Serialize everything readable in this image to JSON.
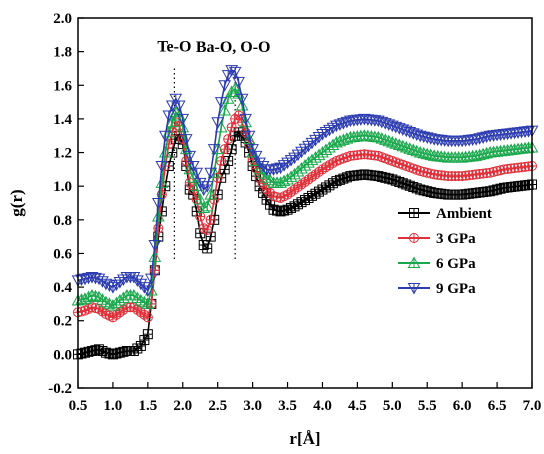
{
  "chart_data": {
    "type": "line",
    "title": "",
    "xlabel": "r[Å]",
    "ylabel": "g(r)",
    "xlim": [
      0.5,
      7.0
    ],
    "ylim": [
      -0.2,
      2.0
    ],
    "x_ticks": [
      "0.5",
      "1.0",
      "1.5",
      "2.0",
      "2.5",
      "3.0",
      "3.5",
      "4.0",
      "4.5",
      "5.0",
      "5.5",
      "6.0",
      "6.5",
      "7.0"
    ],
    "y_ticks": [
      "-0.2",
      "0.0",
      "0.2",
      "0.4",
      "0.6",
      "0.8",
      "1.0",
      "1.2",
      "1.4",
      "1.6",
      "1.8",
      "2.0"
    ],
    "annotations": [
      {
        "text": "Te-O",
        "x": 1.88
      },
      {
        "text": "Ba-O, O-O",
        "x": 2.75
      }
    ],
    "reference_lines_x": [
      1.88,
      2.75
    ],
    "legend_position": "right",
    "series": [
      {
        "name": "Ambient",
        "color": "#000000",
        "marker": "square-plus",
        "x": [
          0.5,
          0.6,
          0.7,
          0.8,
          0.9,
          1.0,
          1.1,
          1.2,
          1.3,
          1.4,
          1.5,
          1.55,
          1.6,
          1.65,
          1.7,
          1.75,
          1.8,
          1.85,
          1.9,
          1.95,
          2.0,
          2.05,
          2.1,
          2.15,
          2.2,
          2.25,
          2.3,
          2.35,
          2.4,
          2.45,
          2.5,
          2.55,
          2.6,
          2.65,
          2.7,
          2.75,
          2.8,
          2.85,
          2.9,
          2.95,
          3.0,
          3.1,
          3.2,
          3.3,
          3.4,
          3.5,
          3.6,
          3.8,
          4.0,
          4.2,
          4.4,
          4.6,
          4.8,
          5.0,
          5.2,
          5.4,
          5.6,
          5.8,
          6.0,
          6.2,
          6.4,
          6.6,
          6.8,
          7.0
        ],
        "y": [
          0.0,
          0.01,
          0.02,
          0.03,
          0.01,
          0.0,
          0.01,
          0.02,
          0.02,
          0.05,
          0.12,
          0.3,
          0.5,
          0.7,
          0.85,
          1.0,
          1.12,
          1.2,
          1.28,
          1.3,
          1.25,
          1.12,
          0.98,
          0.95,
          0.85,
          0.72,
          0.65,
          0.63,
          0.7,
          0.8,
          0.95,
          1.05,
          1.1,
          1.15,
          1.22,
          1.3,
          1.32,
          1.3,
          1.26,
          1.2,
          1.12,
          1.0,
          0.92,
          0.86,
          0.85,
          0.86,
          0.88,
          0.93,
          0.98,
          1.03,
          1.06,
          1.07,
          1.06,
          1.04,
          1.01,
          0.98,
          0.96,
          0.95,
          0.95,
          0.96,
          0.97,
          0.99,
          1.0,
          1.01
        ]
      },
      {
        "name": "3 GPa",
        "color": "#e0303a",
        "marker": "circle-plus",
        "x": [
          0.5,
          0.6,
          0.7,
          0.8,
          0.9,
          1.0,
          1.1,
          1.2,
          1.3,
          1.4,
          1.5,
          1.55,
          1.6,
          1.65,
          1.7,
          1.75,
          1.8,
          1.85,
          1.9,
          1.95,
          2.0,
          2.05,
          2.1,
          2.15,
          2.2,
          2.25,
          2.3,
          2.35,
          2.4,
          2.45,
          2.5,
          2.55,
          2.6,
          2.65,
          2.7,
          2.75,
          2.8,
          2.85,
          2.9,
          2.95,
          3.0,
          3.1,
          3.2,
          3.3,
          3.4,
          3.5,
          3.6,
          3.8,
          4.0,
          4.2,
          4.4,
          4.6,
          4.8,
          5.0,
          5.2,
          5.4,
          5.6,
          5.8,
          6.0,
          6.2,
          6.4,
          6.6,
          6.8,
          7.0
        ],
        "y": [
          0.25,
          0.26,
          0.28,
          0.27,
          0.24,
          0.22,
          0.25,
          0.28,
          0.28,
          0.25,
          0.22,
          0.3,
          0.5,
          0.75,
          0.95,
          1.12,
          1.25,
          1.32,
          1.38,
          1.36,
          1.28,
          1.15,
          1.02,
          0.98,
          0.92,
          0.82,
          0.75,
          0.74,
          0.8,
          0.92,
          1.05,
          1.15,
          1.22,
          1.28,
          1.35,
          1.4,
          1.42,
          1.38,
          1.32,
          1.25,
          1.16,
          1.05,
          0.98,
          0.94,
          0.93,
          0.95,
          0.98,
          1.04,
          1.1,
          1.15,
          1.18,
          1.19,
          1.18,
          1.15,
          1.12,
          1.09,
          1.07,
          1.06,
          1.06,
          1.07,
          1.08,
          1.1,
          1.11,
          1.12
        ]
      },
      {
        "name": "6 GPa",
        "color": "#1aa84c",
        "marker": "triangle-up",
        "x": [
          0.5,
          0.6,
          0.7,
          0.8,
          0.9,
          1.0,
          1.1,
          1.2,
          1.3,
          1.4,
          1.5,
          1.55,
          1.6,
          1.65,
          1.7,
          1.75,
          1.8,
          1.85,
          1.9,
          1.95,
          2.0,
          2.05,
          2.1,
          2.15,
          2.2,
          2.25,
          2.3,
          2.35,
          2.4,
          2.45,
          2.5,
          2.55,
          2.6,
          2.65,
          2.7,
          2.75,
          2.8,
          2.85,
          2.9,
          2.95,
          3.0,
          3.1,
          3.2,
          3.3,
          3.4,
          3.5,
          3.6,
          3.8,
          4.0,
          4.2,
          4.4,
          4.6,
          4.8,
          5.0,
          5.2,
          5.4,
          5.6,
          5.8,
          6.0,
          6.2,
          6.4,
          6.6,
          6.8,
          7.0
        ],
        "y": [
          0.32,
          0.33,
          0.35,
          0.34,
          0.31,
          0.29,
          0.32,
          0.35,
          0.35,
          0.32,
          0.3,
          0.38,
          0.58,
          0.82,
          1.02,
          1.2,
          1.32,
          1.38,
          1.44,
          1.42,
          1.35,
          1.22,
          1.1,
          1.05,
          1.0,
          0.92,
          0.87,
          0.88,
          0.95,
          1.08,
          1.22,
          1.35,
          1.45,
          1.52,
          1.56,
          1.58,
          1.55,
          1.48,
          1.38,
          1.28,
          1.2,
          1.1,
          1.05,
          1.02,
          1.02,
          1.04,
          1.07,
          1.14,
          1.2,
          1.26,
          1.29,
          1.3,
          1.29,
          1.26,
          1.23,
          1.2,
          1.18,
          1.17,
          1.17,
          1.18,
          1.2,
          1.21,
          1.22,
          1.23
        ]
      },
      {
        "name": "9 GPa",
        "color": "#2c3cb0",
        "marker": "triangle-down",
        "x": [
          0.5,
          0.6,
          0.7,
          0.8,
          0.9,
          1.0,
          1.1,
          1.2,
          1.3,
          1.4,
          1.5,
          1.55,
          1.6,
          1.65,
          1.7,
          1.75,
          1.8,
          1.85,
          1.9,
          1.95,
          2.0,
          2.05,
          2.1,
          2.15,
          2.2,
          2.25,
          2.3,
          2.35,
          2.4,
          2.45,
          2.5,
          2.55,
          2.6,
          2.65,
          2.7,
          2.75,
          2.8,
          2.85,
          2.9,
          2.95,
          3.0,
          3.1,
          3.2,
          3.3,
          3.4,
          3.5,
          3.6,
          3.8,
          4.0,
          4.2,
          4.4,
          4.6,
          4.8,
          5.0,
          5.2,
          5.4,
          5.6,
          5.8,
          6.0,
          6.2,
          6.4,
          6.6,
          6.8,
          7.0
        ],
        "y": [
          0.44,
          0.45,
          0.46,
          0.45,
          0.42,
          0.4,
          0.43,
          0.46,
          0.46,
          0.42,
          0.38,
          0.45,
          0.65,
          0.9,
          1.12,
          1.3,
          1.42,
          1.48,
          1.52,
          1.48,
          1.4,
          1.28,
          1.18,
          1.12,
          1.08,
          1.02,
          0.98,
          1.0,
          1.08,
          1.22,
          1.38,
          1.5,
          1.6,
          1.66,
          1.69,
          1.68,
          1.62,
          1.52,
          1.4,
          1.3,
          1.22,
          1.14,
          1.1,
          1.1,
          1.11,
          1.14,
          1.17,
          1.24,
          1.31,
          1.36,
          1.39,
          1.4,
          1.39,
          1.36,
          1.33,
          1.3,
          1.28,
          1.27,
          1.27,
          1.28,
          1.3,
          1.31,
          1.32,
          1.33
        ]
      }
    ]
  }
}
